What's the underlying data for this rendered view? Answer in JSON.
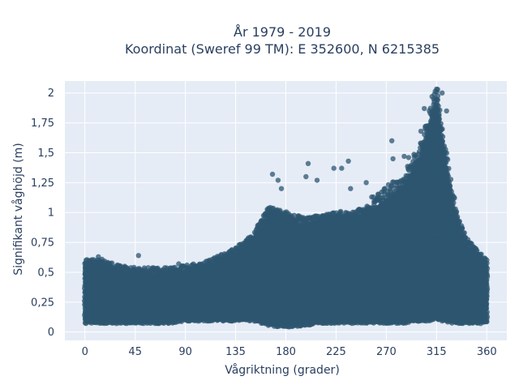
{
  "chart_data": {
    "type": "scatter",
    "title_line1": "År 1979 - 2019",
    "title_line2": "Koordinat (Sweref 99 TM): E 352600, N 6215385",
    "xlabel": "Vågriktning (grader)",
    "ylabel": "Signifikant våghöjd (m)",
    "xlim": [
      -18,
      378
    ],
    "ylim": [
      -0.07,
      2.1
    ],
    "xticks": [
      {
        "value": 0,
        "label": "0"
      },
      {
        "value": 45,
        "label": "45"
      },
      {
        "value": 90,
        "label": "90"
      },
      {
        "value": 135,
        "label": "135"
      },
      {
        "value": 180,
        "label": "180"
      },
      {
        "value": 225,
        "label": "225"
      },
      {
        "value": 270,
        "label": "270"
      },
      {
        "value": 315,
        "label": "315"
      },
      {
        "value": 360,
        "label": "360"
      }
    ],
    "yticks": [
      {
        "value": 0,
        "label": "0"
      },
      {
        "value": 0.25,
        "label": "0,25"
      },
      {
        "value": 0.5,
        "label": "0,5"
      },
      {
        "value": 0.75,
        "label": "0,75"
      },
      {
        "value": 1,
        "label": "1"
      },
      {
        "value": 1.25,
        "label": "1,25"
      },
      {
        "value": 1.5,
        "label": "1,5"
      },
      {
        "value": 1.75,
        "label": "1,75"
      },
      {
        "value": 2,
        "label": "2"
      }
    ],
    "grid": true,
    "marker_color": "#2e5670",
    "plot_bg": "#e5ecf6",
    "envelope": {
      "x": [
        0,
        15,
        30,
        45,
        60,
        75,
        90,
        105,
        120,
        135,
        150,
        165,
        180,
        195,
        210,
        225,
        240,
        255,
        270,
        285,
        300,
        308,
        315,
        320,
        330,
        340,
        350,
        360
      ],
      "upper": [
        0.55,
        0.55,
        0.5,
        0.48,
        0.48,
        0.48,
        0.5,
        0.52,
        0.58,
        0.65,
        0.75,
        1.0,
        0.95,
        0.9,
        0.92,
        0.95,
        0.95,
        1.0,
        1.1,
        1.2,
        1.45,
        1.7,
        1.95,
        1.6,
        1.05,
        0.75,
        0.65,
        0.55
      ],
      "lower": [
        0.08,
        0.08,
        0.08,
        0.08,
        0.08,
        0.08,
        0.1,
        0.1,
        0.1,
        0.1,
        0.1,
        0.06,
        0.05,
        0.06,
        0.08,
        0.08,
        0.08,
        0.08,
        0.08,
        0.08,
        0.1,
        0.1,
        0.12,
        0.1,
        0.08,
        0.08,
        0.08,
        0.08
      ]
    },
    "outliers": [
      {
        "x": 1,
        "y": 0.6
      },
      {
        "x": 12,
        "y": 0.63
      },
      {
        "x": 48,
        "y": 0.64
      },
      {
        "x": 84,
        "y": 0.57
      },
      {
        "x": 145,
        "y": 0.75
      },
      {
        "x": 168,
        "y": 1.32
      },
      {
        "x": 173,
        "y": 1.27
      },
      {
        "x": 176,
        "y": 1.2
      },
      {
        "x": 200,
        "y": 1.41
      },
      {
        "x": 198,
        "y": 1.3
      },
      {
        "x": 208,
        "y": 1.27
      },
      {
        "x": 223,
        "y": 1.37
      },
      {
        "x": 230,
        "y": 1.37
      },
      {
        "x": 236,
        "y": 1.43
      },
      {
        "x": 238,
        "y": 1.2
      },
      {
        "x": 252,
        "y": 1.25
      },
      {
        "x": 262,
        "y": 1.12
      },
      {
        "x": 275,
        "y": 1.6
      },
      {
        "x": 276,
        "y": 1.45
      },
      {
        "x": 286,
        "y": 1.47
      },
      {
        "x": 290,
        "y": 1.46
      },
      {
        "x": 301,
        "y": 1.68
      },
      {
        "x": 304,
        "y": 1.87
      },
      {
        "x": 311,
        "y": 1.97
      },
      {
        "x": 313,
        "y": 1.93
      },
      {
        "x": 316,
        "y": 2.03
      },
      {
        "x": 320,
        "y": 2.0
      },
      {
        "x": 324,
        "y": 1.85
      },
      {
        "x": 340,
        "y": 0.83
      },
      {
        "x": 352,
        "y": 0.64
      },
      {
        "x": 357,
        "y": 0.6
      }
    ]
  }
}
